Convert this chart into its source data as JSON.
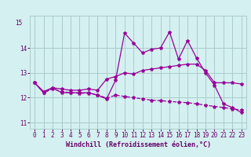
{
  "xlabel": "Windchill (Refroidissement éolien,°C)",
  "bg_color": "#d4f0f0",
  "line_color": "#990099",
  "grid_color": "#aacccc",
  "ylim": [
    10.75,
    15.3
  ],
  "xlim": [
    -0.5,
    23.5
  ],
  "yticks": [
    11,
    12,
    13,
    14
  ],
  "ytick_top": 15,
  "xticks": [
    0,
    1,
    2,
    3,
    4,
    5,
    6,
    7,
    8,
    9,
    10,
    11,
    12,
    13,
    14,
    15,
    16,
    17,
    18,
    19,
    20,
    21,
    22,
    23
  ],
  "hours": [
    0,
    1,
    2,
    3,
    4,
    5,
    6,
    7,
    8,
    9,
    10,
    11,
    12,
    13,
    14,
    15,
    16,
    17,
    18,
    19,
    20,
    21,
    22,
    23
  ],
  "line_main": [
    12.6,
    12.2,
    12.4,
    12.2,
    12.2,
    12.2,
    12.2,
    12.1,
    11.95,
    12.7,
    14.6,
    14.2,
    13.8,
    13.95,
    14.0,
    14.65,
    13.55,
    14.3,
    13.6,
    13.0,
    12.5,
    11.75,
    11.6,
    11.4
  ],
  "line_upper": [
    12.6,
    12.25,
    12.4,
    12.35,
    12.3,
    12.3,
    12.35,
    12.3,
    12.75,
    12.85,
    13.0,
    12.95,
    13.1,
    13.15,
    13.2,
    13.25,
    13.3,
    13.35,
    13.35,
    13.1,
    12.6,
    12.6,
    12.6,
    12.55
  ],
  "line_lower": [
    12.6,
    12.2,
    12.35,
    12.25,
    12.2,
    12.18,
    12.18,
    12.12,
    11.98,
    12.1,
    12.05,
    12.0,
    11.95,
    11.9,
    11.88,
    11.85,
    11.82,
    11.8,
    11.75,
    11.7,
    11.65,
    11.6,
    11.55,
    11.5
  ],
  "font_color": "#660066",
  "tick_fontsize": 5.5,
  "xlabel_fontsize": 6.0
}
